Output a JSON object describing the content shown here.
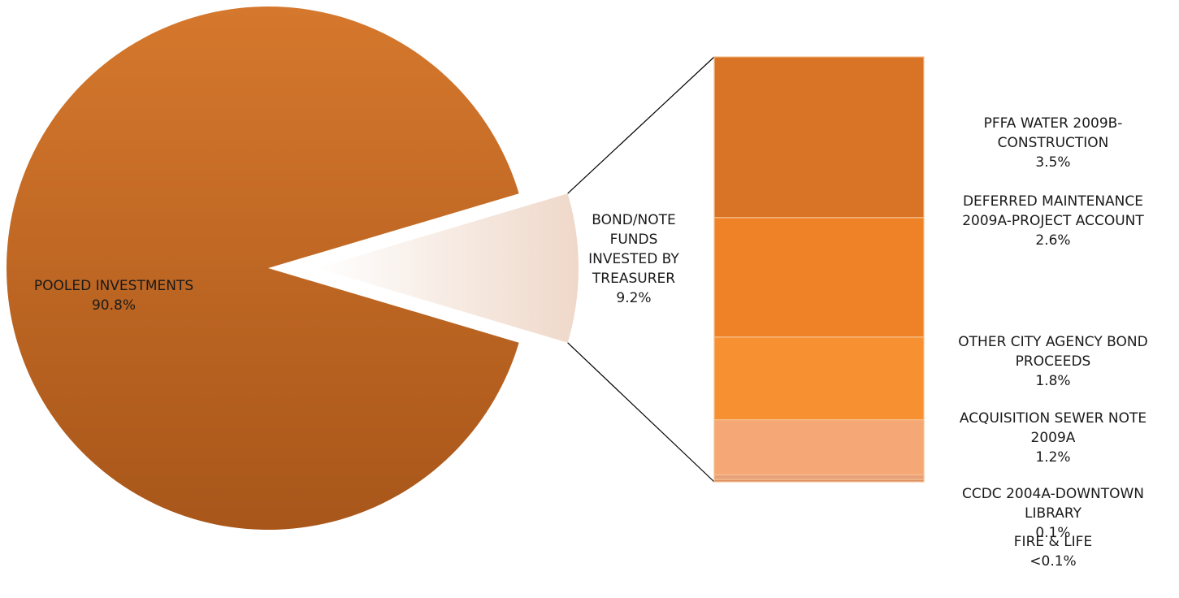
{
  "chart_data": {
    "type": "bar-of-pie",
    "pie": {
      "slices": [
        {
          "label": "POOLED INVESTMENTS",
          "value_label": "90.8%",
          "value": 90.8,
          "color": "#c8661f"
        },
        {
          "label": "BOND/NOTE FUNDS INVESTED BY TREASURER",
          "value_label": "9.2%",
          "value": 9.2,
          "color": "#f2ddd0",
          "exploded": true
        }
      ],
      "label_lines": {
        "pooled": [
          "POOLED INVESTMENTS",
          "90.8%"
        ],
        "bond": [
          "BOND/NOTE",
          "FUNDS",
          "INVESTED BY",
          "TREASURER",
          "9.2%"
        ]
      }
    },
    "bar": {
      "segments": [
        {
          "name": "PFFA WATER 2009B-CONSTRUCTION",
          "lines": [
            "PFFA WATER 2009B-",
            "CONSTRUCTION",
            "3.5%"
          ],
          "value": 3.5,
          "color": "#d97326"
        },
        {
          "name": "DEFERRED MAINTENANCE 2009A-PROJECT ACCOUNT",
          "lines": [
            "DEFERRED MAINTENANCE",
            "2009A-PROJECT ACCOUNT",
            "2.6%"
          ],
          "value": 2.6,
          "color": "#ef8227"
        },
        {
          "name": "OTHER CITY AGENCY BOND PROCEEDS",
          "lines": [
            "OTHER CITY AGENCY BOND",
            "PROCEEDS",
            "1.8%"
          ],
          "value": 1.8,
          "color": "#f79030"
        },
        {
          "name": "ACQUISITION SEWER NOTE 2009A",
          "lines": [
            "ACQUISITION SEWER NOTE",
            "2009A",
            "1.2%"
          ],
          "value": 1.2,
          "color": "#f5a875"
        },
        {
          "name": "CCDC 2004A-DOWNTOWN LIBRARY",
          "lines": [
            "CCDC 2004A-DOWNTOWN",
            "LIBRARY",
            "0.1%"
          ],
          "value": 0.1,
          "color": "#e8a07a"
        },
        {
          "name": "FIRE & LIFE",
          "lines": [
            "FIRE & LIFE",
            "<0.1%"
          ],
          "value": 0.05,
          "color": "#d98c66"
        }
      ]
    }
  }
}
